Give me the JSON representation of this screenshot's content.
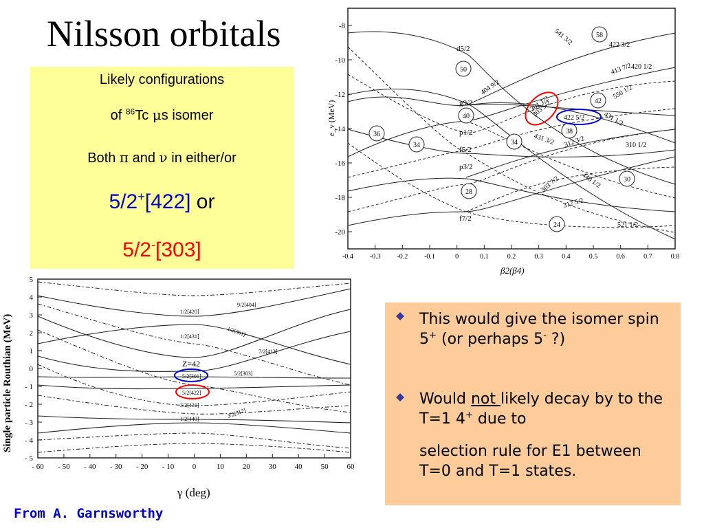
{
  "slide": {
    "title": "Nilsson orbitals",
    "yellow_box": {
      "line1": "Likely configurations",
      "line2_pre": "of ",
      "line2_sup": "86",
      "line2_mid": "Tc ",
      "line2_mu": "μ",
      "line2_post": "s isomer",
      "line3_pre": "Both ",
      "line3_pi": "π",
      "line3_and": " and ",
      "line3_nu": "ν",
      "line3_post": " in either/or",
      "config1_main": "5/2",
      "config1_sup": "+",
      "config1_bracket": "[422]",
      "config1_or": " or",
      "config2_main": "5/2",
      "config2_sup": "-",
      "config2_bracket": "[303]"
    },
    "bullets": {
      "b1_pre": "This would give the isomer spin 5",
      "b1_sup1": "+",
      "b1_mid": " (or perhaps 5",
      "b1_sup2": "-",
      "b1_post": " ?)",
      "b2_pre": "Would ",
      "b2_underline": "not ",
      "b2_mid": "likely decay by to the T=1 4",
      "b2_sup": "+",
      "b2_post": " due to",
      "b2_cont": "selection rule for E1 between T=0 and T=1 states."
    },
    "credit": "From A. Garnsworthy",
    "colors": {
      "yellow": "#ffff99",
      "orange": "#fdcc9a",
      "blue": "#0000cc",
      "red": "#ff0000"
    }
  },
  "chart_data": [
    {
      "type": "line",
      "ylabel": "e_ν (MeV)",
      "xlabel": "β2(β4)",
      "xlim": [
        -0.4,
        0.8
      ],
      "ylim": [
        -21,
        -7
      ],
      "x_ticks": [
        "-0.4",
        "-0.3",
        "-0.2",
        "-0.1",
        "0",
        "0.1",
        "0.2",
        "0.3",
        "0.4",
        "0.5",
        "0.6",
        "0.7",
        "0.8"
      ],
      "y_ticks": [
        "-8",
        "-10",
        "-12",
        "-14",
        "-16",
        "-18",
        "-20"
      ],
      "shell_labels": [
        "d5/2",
        "g9/2",
        "p1/2",
        "f5/2",
        "p3/2",
        "f7/2"
      ],
      "magic_numbers": [
        "58",
        "50",
        "42",
        "40",
        "38",
        "36",
        "34",
        "34",
        "30",
        "28",
        "24"
      ],
      "orbital_labels": [
        "541 3/2",
        "422 3/2",
        "420 1/2",
        "413 7/2",
        "404 9/2",
        "550 1/2",
        "301 1/2",
        "303 5/2",
        "422 5/2",
        "431 1/2",
        "431 3/2",
        "312 3/2",
        "310 1/2",
        "303 7/2",
        "440 1/2",
        "312 5/2",
        "521 1/2"
      ],
      "highlighted": [
        {
          "orbital": "303 5/2",
          "color": "red"
        },
        {
          "orbital": "422 5/2",
          "color": "blue"
        }
      ]
    },
    {
      "type": "line",
      "ylabel": "Single particle Routhian (MeV)",
      "xlabel": "γ (deg)",
      "xlim": [
        -60,
        60
      ],
      "ylim": [
        -5,
        5
      ],
      "x_ticks": [
        "- 60",
        "- 50",
        "- 40",
        "- 30",
        "- 20",
        "- 10",
        "0",
        "10",
        "20",
        "30",
        "40",
        "50",
        "60"
      ],
      "y_ticks": [
        "5",
        "4",
        "3",
        "2",
        "1",
        "0",
        "- 1",
        "- 2",
        "- 3",
        "- 4",
        "- 5"
      ],
      "annotation": "Z=42",
      "orbital_labels": [
        "9/2[404]",
        "1/2[420]",
        "1/2[301]",
        "1/2[431]",
        "7/2[413]",
        "5/2[303]",
        "5/2[301]",
        "5/2[422]",
        "3/2[431]",
        "3/2[312]",
        "1/2[440]"
      ],
      "highlighted": [
        {
          "orbital": "5/2[301]",
          "color": "blue"
        },
        {
          "orbital": "5/2[422]",
          "color": "red"
        }
      ]
    }
  ]
}
